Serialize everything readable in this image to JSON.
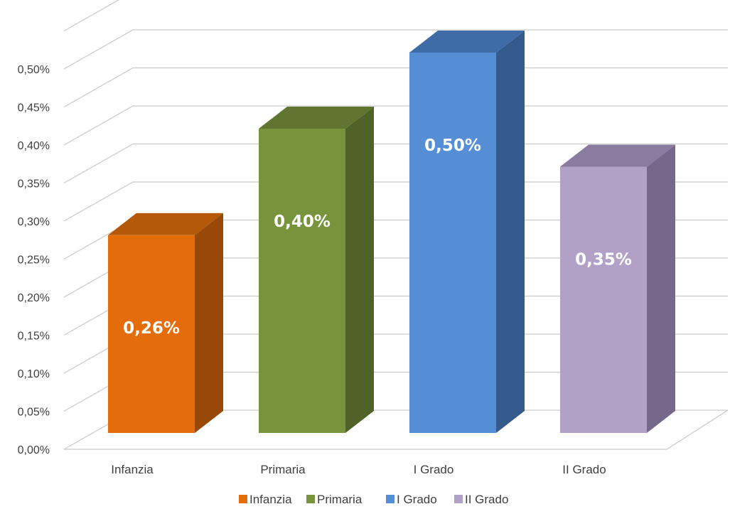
{
  "chart_data": {
    "type": "bar",
    "style": "3d-clustered-column",
    "categories": [
      "Infanzia",
      "Primaria",
      "I Grado",
      "II Grado"
    ],
    "values": [
      0.26,
      0.4,
      0.5,
      0.35
    ],
    "data_labels": [
      "0,26%",
      "0,40%",
      "0,50%",
      "0,35%"
    ],
    "ylim": [
      0,
      0.55
    ],
    "yticks": [
      0.0,
      0.05,
      0.1,
      0.15,
      0.2,
      0.25,
      0.3,
      0.35,
      0.4,
      0.45,
      0.5,
      0.55
    ],
    "ytick_labels": [
      "0,00%",
      "0,05%",
      "0,10%",
      "0,15%",
      "0,20%",
      "0,25%",
      "0,30%",
      "0,35%",
      "0,40%",
      "0,45%",
      "0,50%",
      ""
    ],
    "grid": true,
    "legend": {
      "placement": "bottom",
      "entries": [
        "Infanzia",
        "Primaria",
        "I Grado",
        "II Grado"
      ]
    },
    "colors": {
      "Infanzia": {
        "front": "#e46c0a",
        "side": "#984807",
        "top": "#b45809"
      },
      "Primaria": {
        "front": "#77933c",
        "side": "#4f6228",
        "top": "#5f7530"
      },
      "I Grado": {
        "front": "#558ed5",
        "side": "#355b8c",
        "top": "#3f6ca6"
      },
      "II Grado": {
        "front": "#b2a1c7",
        "side": "#76688a",
        "top": "#8a7ba0"
      }
    }
  }
}
